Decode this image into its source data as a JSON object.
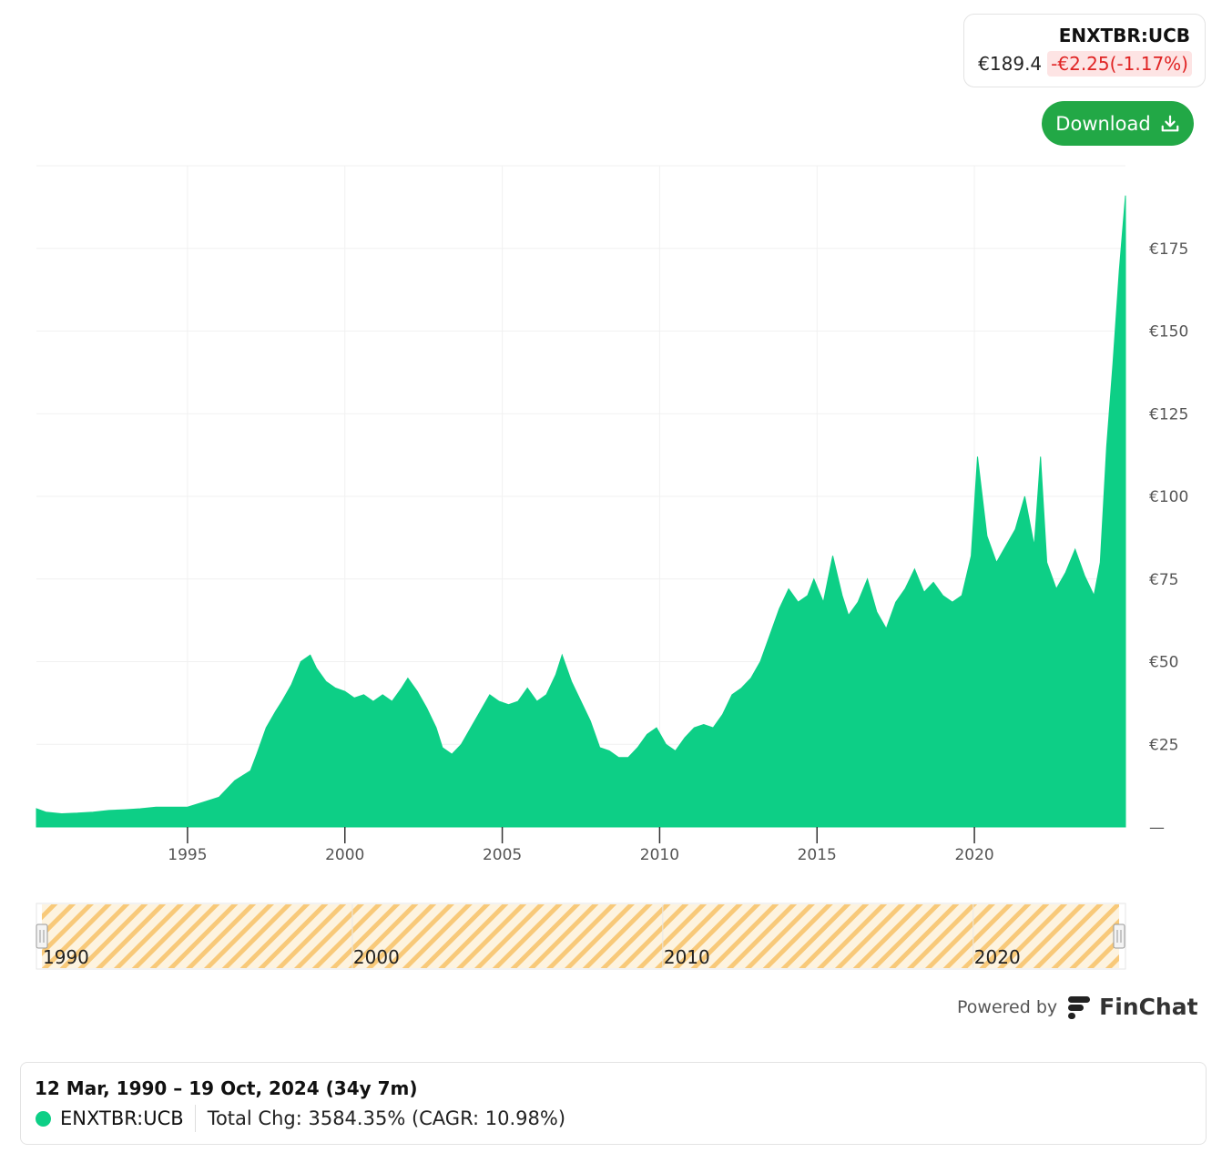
{
  "ticker": {
    "symbol": "ENXTBR:UCB",
    "price": "€189.4",
    "change": "-€2.25(-1.17%)"
  },
  "download_button": {
    "label": "Download"
  },
  "chart_data": {
    "type": "area",
    "series": [
      {
        "x": [
          1990.2,
          1990.5,
          1991.0,
          1991.5,
          1992.0,
          1992.5,
          1993.0,
          1993.5,
          1994.0,
          1994.5,
          1995.0,
          1995.5,
          1996.0,
          1996.5,
          1997.0,
          1997.2,
          1997.5,
          1997.8,
          1998.0,
          1998.3,
          1998.6,
          1998.9,
          1999.1,
          1999.4,
          1999.7,
          2000.0,
          2000.3,
          2000.6,
          2000.9,
          2001.2,
          2001.5,
          2001.8,
          2002.0,
          2002.3,
          2002.6,
          2002.9,
          2003.1,
          2003.4,
          2003.7,
          2004.0,
          2004.3,
          2004.6,
          2004.9,
          2005.2,
          2005.5,
          2005.8,
          2006.1,
          2006.4,
          2006.7,
          2006.9,
          2007.2,
          2007.5,
          2007.8,
          2008.1,
          2008.4,
          2008.7,
          2009.0,
          2009.3,
          2009.6,
          2009.9,
          2010.2,
          2010.5,
          2010.8,
          2011.1,
          2011.4,
          2011.7,
          2012.0,
          2012.3,
          2012.6,
          2012.9,
          2013.2,
          2013.5,
          2013.8,
          2014.1,
          2014.4,
          2014.7,
          2014.9,
          2015.2,
          2015.5,
          2015.8,
          2016.0,
          2016.3,
          2016.6,
          2016.9,
          2017.2,
          2017.5,
          2017.8,
          2018.1,
          2018.4,
          2018.7,
          2019.0,
          2019.3,
          2019.6,
          2019.9,
          2020.1,
          2020.4,
          2020.7,
          2021.0,
          2021.3,
          2021.6,
          2021.9,
          2022.1,
          2022.3,
          2022.6,
          2022.9,
          2023.2,
          2023.5,
          2023.8,
          2024.0,
          2024.2,
          2024.4,
          2024.6,
          2024.8
        ],
        "y": [
          5.5,
          4.5,
          4.0,
          4.2,
          4.5,
          5.0,
          5.2,
          5.5,
          6.0,
          6.0,
          6.0,
          7.5,
          9.0,
          14.0,
          17.0,
          22.0,
          30.0,
          35.0,
          38.0,
          43.0,
          50.0,
          52.0,
          48.0,
          44.0,
          42.0,
          41.0,
          39.0,
          40.0,
          38.0,
          40.0,
          38.0,
          42.0,
          45.0,
          41.0,
          36.0,
          30.0,
          24.0,
          22.0,
          25.0,
          30.0,
          35.0,
          40.0,
          38.0,
          37.0,
          38.0,
          42.0,
          38.0,
          40.0,
          46.0,
          52.0,
          44.0,
          38.0,
          32.0,
          24.0,
          23.0,
          21.0,
          21.0,
          24.0,
          28.0,
          30.0,
          25.0,
          23.0,
          27.0,
          30.0,
          31.0,
          30.0,
          34.0,
          40.0,
          42.0,
          45.0,
          50.0,
          58.0,
          66.0,
          72.0,
          68.0,
          70.0,
          75.0,
          68.0,
          82.0,
          70.0,
          64.0,
          68.0,
          75.0,
          65.0,
          60.0,
          68.0,
          72.0,
          78.0,
          71.0,
          74.0,
          70.0,
          68.0,
          70.0,
          82.0,
          112.0,
          88.0,
          80.0,
          85.0,
          90.0,
          100.0,
          85.0,
          112.0,
          80.0,
          72.0,
          77.0,
          84.0,
          76.0,
          70.0,
          80.0,
          115.0,
          140.0,
          168.0,
          191.0
        ]
      }
    ],
    "x_ticks": [
      "1995",
      "2000",
      "2005",
      "2010",
      "2015",
      "2020"
    ],
    "x_tick_values": [
      1995,
      2000,
      2005,
      2010,
      2015,
      2020
    ],
    "y_ticks": [
      "—",
      "€25",
      "€50",
      "€75",
      "€100",
      "€125",
      "€150",
      "€175"
    ],
    "y_tick_values": [
      0,
      25,
      50,
      75,
      100,
      125,
      150,
      175
    ],
    "xlim": [
      1990.2,
      2024.8
    ],
    "ylim": [
      0,
      200
    ],
    "navigator_labels": [
      "1990",
      "2000",
      "2010",
      "2020"
    ],
    "navigator_values": [
      1990,
      2000,
      2010,
      2020
    ],
    "fill_color": "#0dcf86",
    "navigator_color": "#f8c979"
  },
  "powered_by": {
    "text": "Powered by",
    "brand": "FinChat"
  },
  "summary": {
    "range": "12 Mar, 1990 – 19 Oct, 2024 (34y 7m)",
    "series_name": "ENXTBR:UCB",
    "stats": "Total Chg: 3584.35% (CAGR: 10.98%)"
  }
}
